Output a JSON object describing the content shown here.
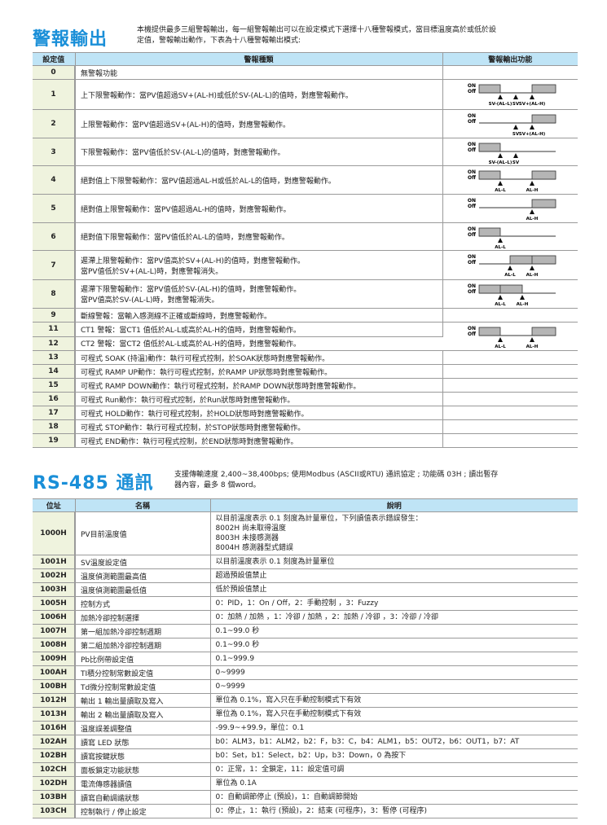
{
  "alarm": {
    "title": "警報輸出",
    "intro": [
      "本機提供最多三組警報輸出，每一組警報輸出可以在設定模式下選擇十八種警報模式，當目標溫度高於或低於設",
      "定值，警報輸出動作，下表為十八種警報輸出模式:"
    ],
    "headers": [
      "設定值",
      "警報種類",
      "警報輸出功能"
    ],
    "diagram_labels": {
      "on": "ON",
      "off": "Off"
    },
    "rows": [
      {
        "value": "0",
        "desc": [
          "無警報功能"
        ]
      },
      {
        "value": "1",
        "desc": [
          "上下限警報動作：當PV值超過SV+(AL-H)或低於SV-(AL-L)的值時，對應警報動作。"
        ],
        "diagram": {
          "pattern": "outside",
          "markers": [
            "SV-(AL-L)",
            "SV",
            "SV+(AL-H)"
          ]
        }
      },
      {
        "value": "2",
        "desc": [
          "上限警報動作：當PV值超過SV+(AL-H)的值時，對應警報動作。"
        ],
        "diagram": {
          "pattern": "above",
          "markers": [
            "SV",
            "SV+(AL-H)"
          ]
        }
      },
      {
        "value": "3",
        "desc": [
          "下限警報動作：當PV值低於SV-(AL-L)的值時，對應警報動作。"
        ],
        "diagram": {
          "pattern": "below",
          "markers": [
            "SV-(AL-L)",
            "SV"
          ]
        }
      },
      {
        "value": "4",
        "desc": [
          "絕對值上下限警報動作：當PV值超過AL-H或低於AL-L的值時，對應警報動作。"
        ],
        "diagram": {
          "pattern": "outside_abs",
          "markers": [
            "AL-L",
            "AL-H"
          ]
        }
      },
      {
        "value": "5",
        "desc": [
          "絕對值上限警報動作：當PV值超過AL-H的值時，對應警報動作。"
        ],
        "diagram": {
          "pattern": "above_abs",
          "markers": [
            "AL-H"
          ]
        }
      },
      {
        "value": "6",
        "desc": [
          "絕對值下限警報動作：當PV值低於AL-L的值時，對應警報動作。"
        ],
        "diagram": {
          "pattern": "below_abs",
          "markers": [
            "AL-L"
          ]
        }
      },
      {
        "value": "7",
        "desc": [
          "遲滯上限警報動作：當PV值高於SV+(AL-H)的值時，對應警報動作。",
          "當PV值低於SV+(AL-L)時，對應警報消失。"
        ],
        "diagram": {
          "pattern": "hyst_high",
          "markers": [
            "AL-L",
            "AL-H"
          ]
        }
      },
      {
        "value": "8",
        "desc": [
          "遲滯下限警報動作：當PV值低於SV-(AL-H)的值時，對應警報動作。",
          "當PV值高於SV-(AL-L)時，對應警報消失。"
        ],
        "diagram": {
          "pattern": "hyst_low",
          "markers": [
            "AL-L",
            "AL-H"
          ]
        }
      },
      {
        "value": "9",
        "desc": [
          "斷線警報：當輸入感測線不正確或斷線時，對應警報動作。"
        ]
      },
      {
        "value": "11",
        "desc": [
          "CT1 警報：當CT1 值低於AL-L或高於AL-H的值時，對應警報動作。"
        ],
        "diagram": {
          "pattern": "outside_abs",
          "markers": [
            "AL-L",
            "AL-H"
          ]
        }
      },
      {
        "value": "12",
        "desc": [
          "CT2 警報：當CT2 值低於AL-L或高於AL-H的值時，對應警報動作。"
        ]
      },
      {
        "value": "13",
        "desc": [
          "可程式 SOAK (持溫)動作：執行可程式控制，於SOAK狀態時對應警報動作。"
        ]
      },
      {
        "value": "14",
        "desc": [
          "可程式 RAMP UP動作：執行可程式控制，於RAMP UP狀態時對應警報動作。"
        ]
      },
      {
        "value": "15",
        "desc": [
          "可程式 RAMP DOWN動作：執行可程式控制，於RAMP DOWN狀態時對應警報動作。"
        ]
      },
      {
        "value": "16",
        "desc": [
          "可程式 Run動作：執行可程式控制，於Run狀態時對應警報動作。"
        ]
      },
      {
        "value": "17",
        "desc": [
          "可程式 HOLD動作：執行可程式控制，於HOLD狀態時對應警報動作。"
        ]
      },
      {
        "value": "18",
        "desc": [
          "可程式 STOP動作：執行可程式控制，於STOP狀態時對應警報動作。"
        ]
      },
      {
        "value": "19",
        "desc": [
          "可程式 END動作：執行可程式控制，於END狀態時對應警報動作。"
        ]
      }
    ]
  },
  "rs485": {
    "title": "RS-485 通訊",
    "intro": [
      "支援傳輸速度 2,400~38,400bps; 使用Modbus (ASCII或RTU) 通訊協定 ; 功能碼 03H ; 讀出暫存",
      "器內容，最多 8 個word。"
    ],
    "headers": [
      "位址",
      "名稱",
      "說明"
    ],
    "rows": [
      {
        "addr": "1000H",
        "name": "PV目前溫度值",
        "desc": [
          "以目前溫度表示 0.1 刻度為計量單位，下列讀值表示錯誤發生：",
          "8002H 尚未取得溫度",
          "8003H 未接感測器",
          "8004H 感測器型式錯誤"
        ]
      },
      {
        "addr": "1001H",
        "name": "SV溫度設定值",
        "desc": [
          "以目前溫度表示 0.1 刻度為計量單位"
        ]
      },
      {
        "addr": "1002H",
        "name": "溫度偵測範圍最高值",
        "desc": [
          "超過預設值禁止"
        ]
      },
      {
        "addr": "1003H",
        "name": "溫度偵測範圍最低值",
        "desc": [
          "低於預設值禁止"
        ]
      },
      {
        "addr": "1005H",
        "name": "控制方式",
        "desc": [
          "0：PID，1：On / Off，2：手動控制 ，3：Fuzzy"
        ]
      },
      {
        "addr": "1006H",
        "name": "加熱冷卻控制選擇",
        "desc": [
          "0：加熱 / 加熱 ，1：冷卻 / 加熱 ，2：加熱 / 冷卻 ，3：冷卻 / 冷卻"
        ]
      },
      {
        "addr": "1007H",
        "name": "第一組加熱冷卻控制週期",
        "desc": [
          "0.1~99.0 秒"
        ]
      },
      {
        "addr": "1008H",
        "name": "第二組加熱冷卻控制週期",
        "desc": [
          "0.1~99.0 秒"
        ]
      },
      {
        "addr": "1009H",
        "name": "Pb比例帶設定值",
        "desc": [
          "0.1~999.9"
        ]
      },
      {
        "addr": "100AH",
        "name": "TI積分控制常數設定值",
        "desc": [
          "0~9999"
        ]
      },
      {
        "addr": "100BH",
        "name": "Td微分控制常數設定值",
        "desc": [
          "0~9999"
        ]
      },
      {
        "addr": "1012H",
        "name": "輸出 1 輸出量讀取及寫入",
        "desc": [
          "單位為 0.1%，寫入只在手動控制模式下有效"
        ]
      },
      {
        "addr": "1013H",
        "name": "輸出 2 輸出量讀取及寫入",
        "desc": [
          "單位為 0.1%，寫入只在手動控制模式下有效"
        ]
      },
      {
        "addr": "1016H",
        "name": "溫度誤差調整值",
        "desc": [
          "-99.9~+99.9，單位：0.1"
        ]
      },
      {
        "addr": "102AH",
        "name": "讀寫 LED 狀態",
        "desc": [
          "b0：ALM3，b1：ALM2，b2：F，b3：C，b4：ALM1，b5：OUT2，b6：OUT1，b7：AT"
        ]
      },
      {
        "addr": "102BH",
        "name": "讀寫按鍵狀態",
        "desc": [
          "b0：Set，b1：Select，b2：Up，b3：Down，0 為按下"
        ]
      },
      {
        "addr": "102CH",
        "name": "面板鎖定功能狀態",
        "desc": [
          "0：正常，1：全鎖定，11：設定值可調"
        ]
      },
      {
        "addr": "102DH",
        "name": "電流傳感器讀值",
        "desc": [
          "單位為 0.1A"
        ]
      },
      {
        "addr": "103BH",
        "name": "讀寫自動調諧狀態",
        "desc": [
          "0：自動調節停止 (預設)，1：自動調節開始"
        ]
      },
      {
        "addr": "103CH",
        "name": "控制執行 / 停止設定",
        "desc": [
          "0：停止，1：執行 (預設)，2：結束 (可程序)，3：暫停 (可程序)"
        ]
      }
    ]
  }
}
